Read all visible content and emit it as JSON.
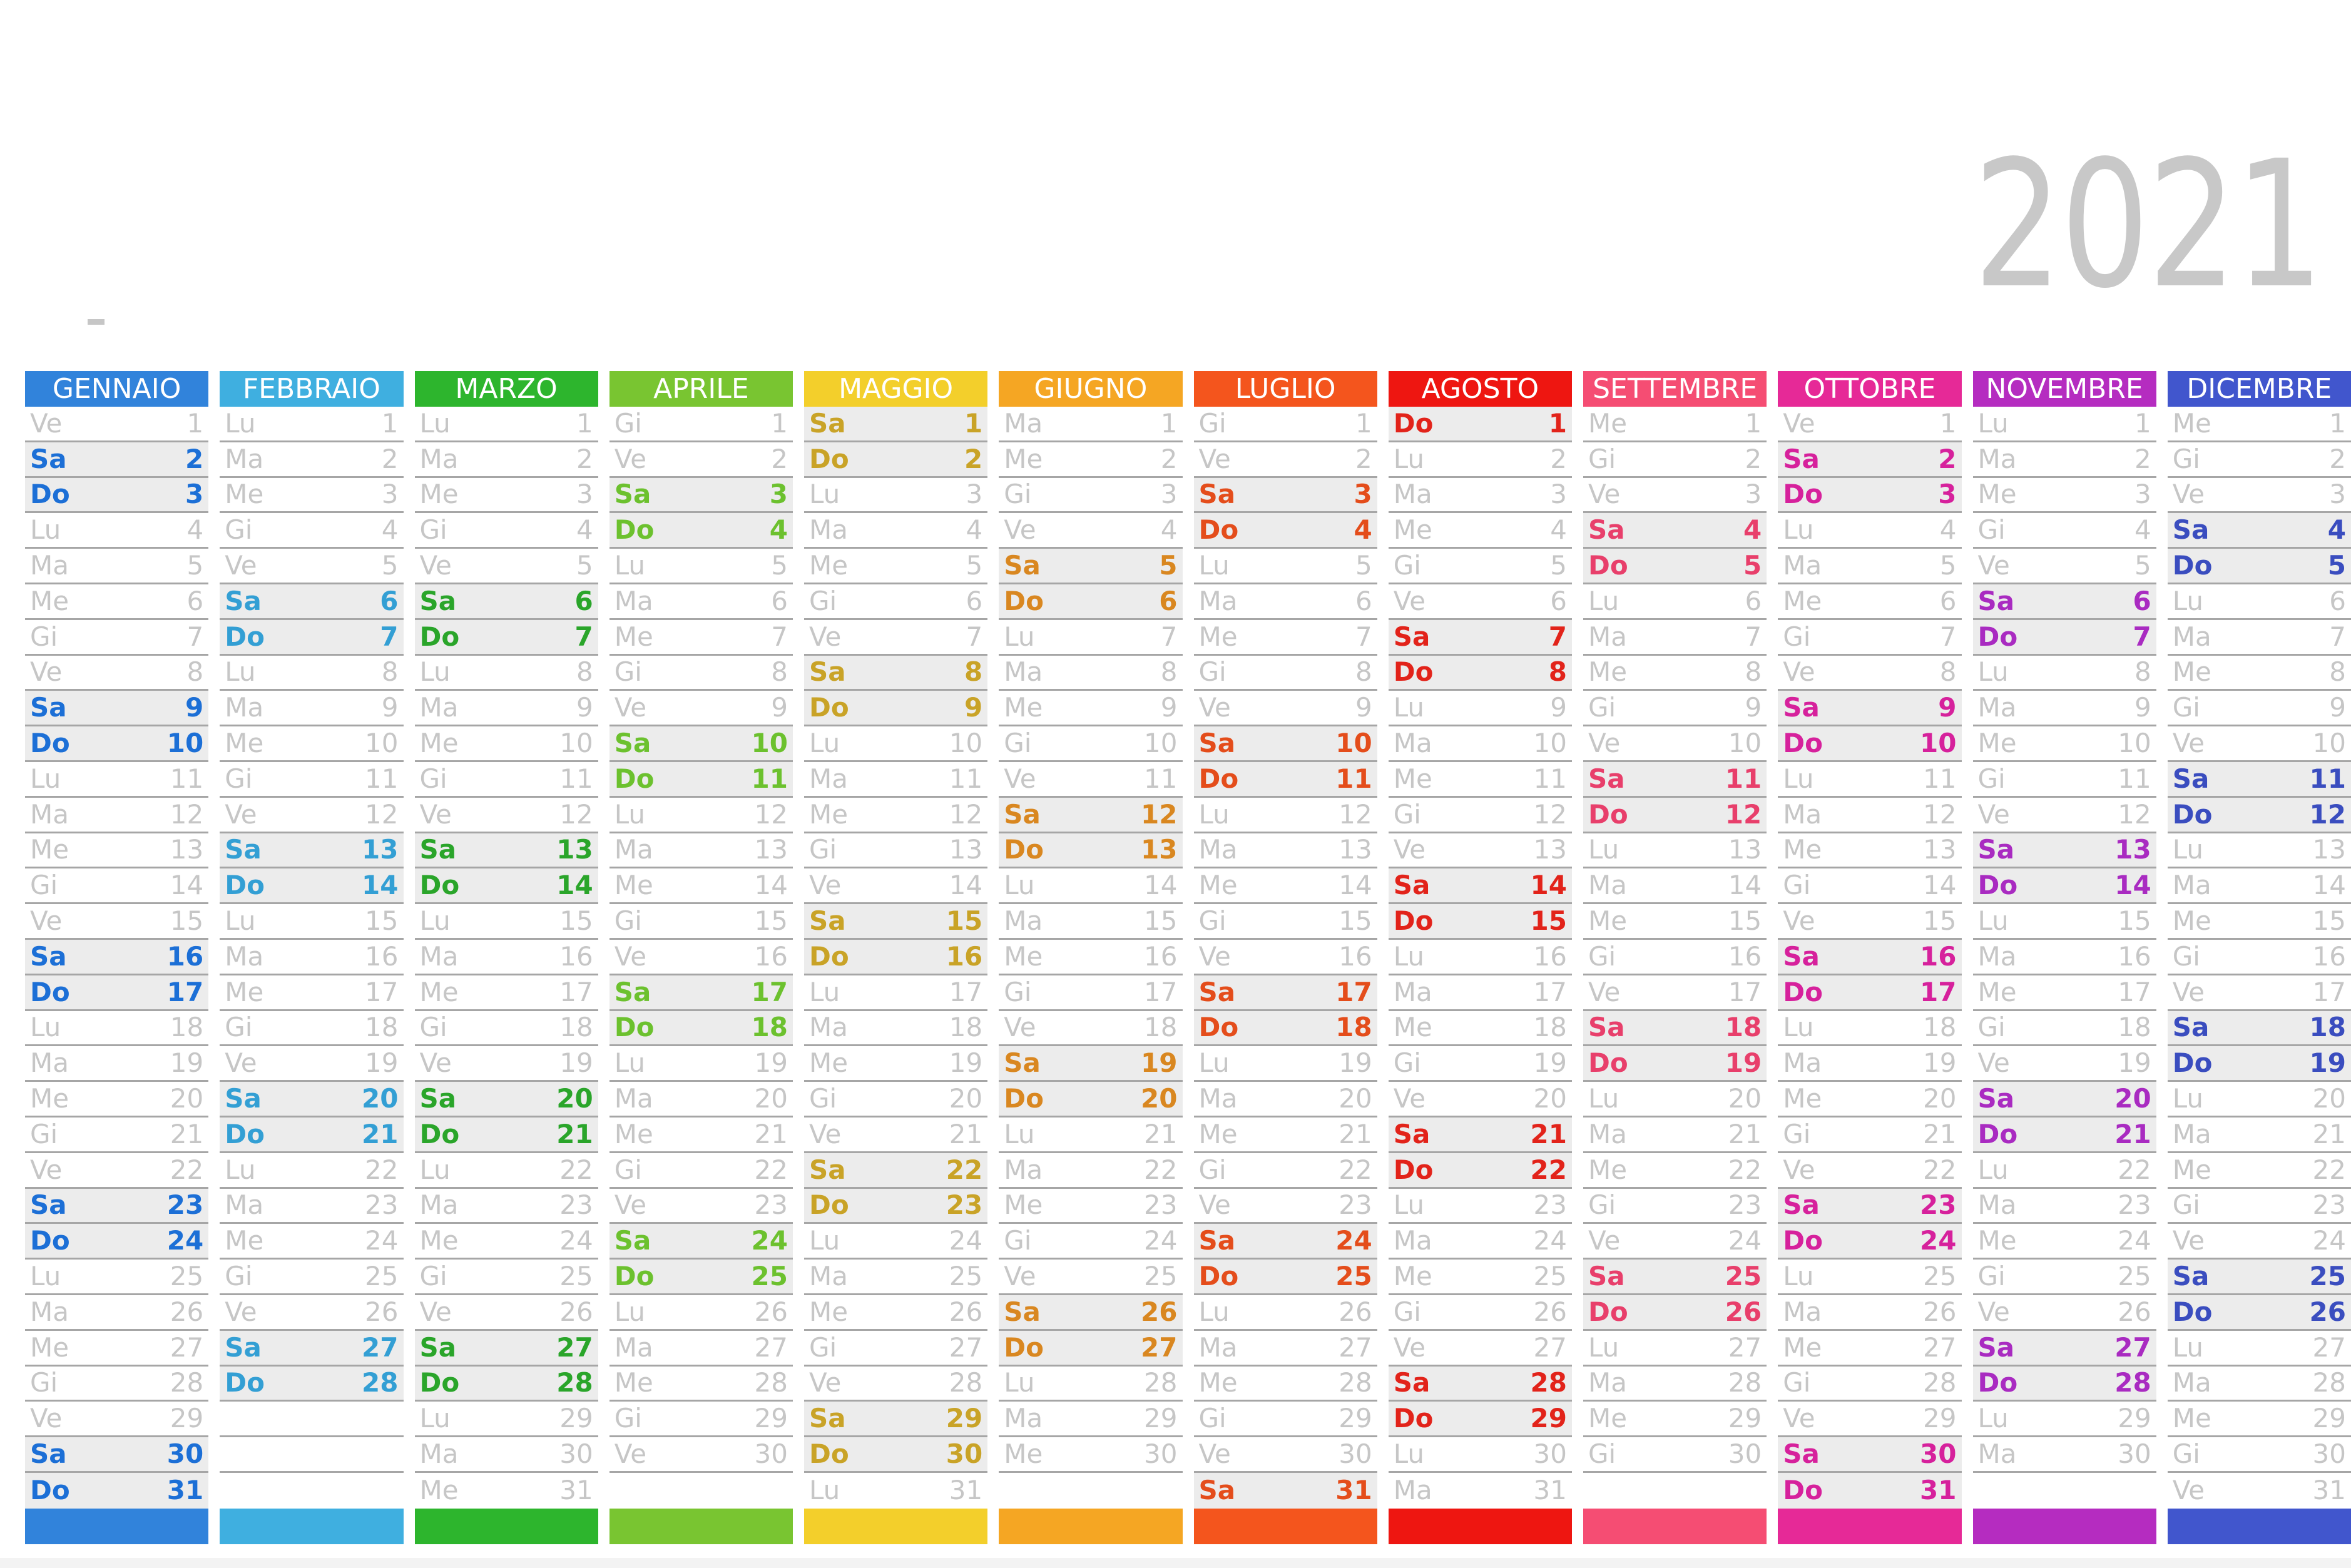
{
  "year": "2021",
  "year_color": "#c8c8c8",
  "weekday_labels": [
    "Lu",
    "Ma",
    "Me",
    "Gi",
    "Ve",
    "Sa",
    "Do"
  ],
  "weekend_days": [
    "Sa",
    "Do"
  ],
  "weekend_bg": "#ececec",
  "weekday_color": "#c6c6c6",
  "grid_line_color": "#a6a6a6",
  "rows_per_month": 31,
  "months": [
    {
      "name": "GENNAIO",
      "header_color": "#3183db",
      "weekend_text_color": "#1c6fd6",
      "first_weekday_index": 4,
      "days": 31
    },
    {
      "name": "FEBBRAIO",
      "header_color": "#3fafe0",
      "weekend_text_color": "#339fd4",
      "first_weekday_index": 0,
      "days": 28
    },
    {
      "name": "MARZO",
      "header_color": "#2db52d",
      "weekend_text_color": "#2aa52a",
      "first_weekday_index": 0,
      "days": 31
    },
    {
      "name": "APRILE",
      "header_color": "#79c531",
      "weekend_text_color": "#6cc12e",
      "first_weekday_index": 3,
      "days": 30
    },
    {
      "name": "MAGGIO",
      "header_color": "#f3cf2b",
      "weekend_text_color": "#c9a327",
      "first_weekday_index": 5,
      "days": 31
    },
    {
      "name": "GIUGNO",
      "header_color": "#f5a623",
      "weekend_text_color": "#d98720",
      "first_weekday_index": 1,
      "days": 30
    },
    {
      "name": "LUGLIO",
      "header_color": "#f4551d",
      "weekend_text_color": "#e44d1b",
      "first_weekday_index": 3,
      "days": 31
    },
    {
      "name": "AGOSTO",
      "header_color": "#ee1611",
      "weekend_text_color": "#e2231a",
      "first_weekday_index": 6,
      "days": 31
    },
    {
      "name": "SETTEMBRE",
      "header_color": "#f54d73",
      "weekend_text_color": "#e83f6b",
      "first_weekday_index": 2,
      "days": 30
    },
    {
      "name": "OTTOBRE",
      "header_color": "#e62997",
      "weekend_text_color": "#d6219c",
      "first_weekday_index": 4,
      "days": 31
    },
    {
      "name": "NOVEMBRE",
      "header_color": "#b52cc0",
      "weekend_text_color": "#a92bc1",
      "first_weekday_index": 0,
      "days": 30
    },
    {
      "name": "DICEMBRE",
      "header_color": "#4156cd",
      "weekend_text_color": "#3a4dbf",
      "first_weekday_index": 2,
      "days": 31
    }
  ]
}
